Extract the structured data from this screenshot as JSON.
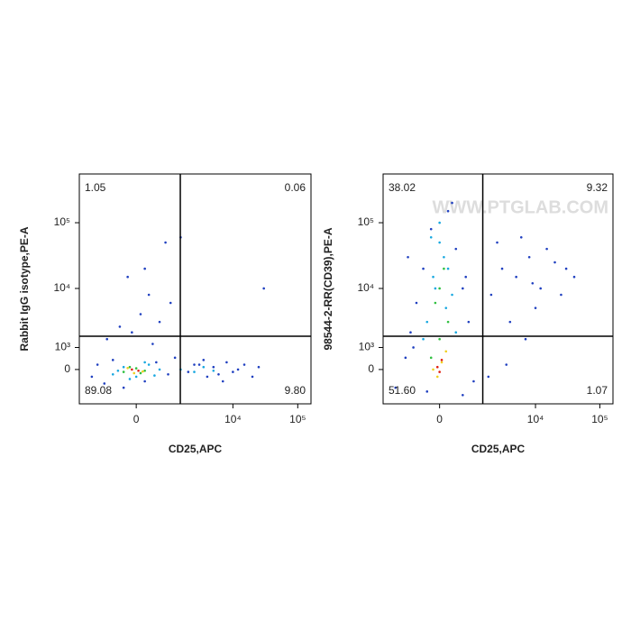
{
  "chart_data": [
    {
      "type": "scatter",
      "x_label": "CD25,APC",
      "y_label": "Rabbit IgG isotype,PE-A",
      "xlim": [
        -2400,
        160000
      ],
      "ylim": [
        -1780,
        550000
      ],
      "xticks": [
        0,
        {
          "value": 10000,
          "label": "10⁴"
        },
        {
          "value": 100000,
          "label": "10⁵"
        }
      ],
      "yticks": [
        0,
        {
          "value": 1000,
          "label": "10³"
        },
        {
          "value": 10000,
          "label": "10⁴"
        },
        {
          "value": 100000,
          "label": "10⁵"
        }
      ],
      "quadrant_x": 1480,
      "quadrant_y": 1700,
      "quadrant_values": [
        1.05,
        0.06,
        89.08,
        9.8
      ],
      "value_labels": [
        "1.05",
        "0.06",
        "89.08",
        "9.80"
      ],
      "series": [
        {
          "color": "#2040c0",
          "x": [
            -1500,
            -1200,
            -900,
            -600,
            -300,
            200,
            500,
            900,
            1200,
            2000,
            3000,
            4000,
            5000,
            6000,
            8000,
            10000,
            12000,
            15000,
            20000,
            25000,
            -400,
            100,
            300,
            -200,
            600,
            -800,
            1000,
            2500,
            7000,
            3500,
            400,
            -100,
            200,
            800,
            30000,
            1500
          ],
          "y": [
            -300,
            200,
            -600,
            400,
            -800,
            -500,
            300,
            -200,
            500,
            -100,
            200,
            -300,
            100,
            -200,
            300,
            -100,
            0,
            200,
            -300,
            100,
            2500,
            4000,
            8000,
            15000,
            3000,
            1500,
            6000,
            200,
            -500,
            400,
            1200,
            2000,
            20000,
            50000,
            10000,
            60000
          ]
        },
        {
          "color": "#18a8e0",
          "x": [
            -600,
            -300,
            0,
            300,
            600,
            -450,
            450,
            1500,
            2500,
            3500,
            5000,
            200,
            -150
          ],
          "y": [
            -200,
            100,
            -300,
            200,
            0,
            -50,
            -250,
            0,
            -100,
            100,
            -50,
            300,
            -400
          ]
        },
        {
          "color": "#30c040",
          "x": [
            -300,
            0,
            200,
            -150,
            100
          ],
          "y": [
            -100,
            50,
            -50,
            100,
            -150
          ]
        },
        {
          "color": "#f0d020",
          "x": [
            -200,
            150,
            -50
          ],
          "y": [
            60,
            -80,
            -150
          ]
        },
        {
          "color": "#e02010",
          "x": [
            -100,
            50
          ],
          "y": [
            0,
            -50
          ]
        }
      ]
    },
    {
      "type": "scatter",
      "x_label": "CD25,APC",
      "y_label": "98544-2-RR(CD39),PE-A",
      "watermark": "WWW.PTGLAB.COM",
      "xlim": [
        -2400,
        160000
      ],
      "ylim": [
        -1780,
        550000
      ],
      "xticks": [
        0,
        {
          "value": 10000,
          "label": "10⁴"
        },
        {
          "value": 100000,
          "label": "10⁵"
        }
      ],
      "yticks": [
        0,
        {
          "value": 1000,
          "label": "10³"
        },
        {
          "value": 10000,
          "label": "10⁴"
        },
        {
          "value": 100000,
          "label": "10⁵"
        }
      ],
      "quadrant_x": 1450,
      "quadrant_y": 1700,
      "quadrant_values": [
        38.02,
        9.32,
        51.6,
        1.07
      ],
      "value_labels": [
        "38.02",
        "9.32",
        "51.60",
        "1.07"
      ],
      "series": [
        {
          "color": "#2040c0",
          "x": [
            -1500,
            -1000,
            -800,
            -600,
            -400,
            -200,
            200,
            400,
            600,
            800,
            1000,
            -700,
            700,
            -300,
            300,
            2000,
            3000,
            5000,
            8000,
            12000,
            20000,
            30000,
            4000,
            6000,
            10000,
            15000,
            25000,
            2500,
            7000,
            9000,
            1800,
            40000,
            3500,
            600,
            -900
          ],
          "y": [
            -800,
            500,
            2000,
            6000,
            20000,
            80000,
            150000,
            40000,
            10000,
            3000,
            -500,
            1000,
            15000,
            -1000,
            200000,
            8000,
            20000,
            15000,
            30000,
            10000,
            25000,
            20000,
            3000,
            60000,
            5000,
            40000,
            8000,
            50000,
            1500,
            12000,
            -300,
            15000,
            200,
            -1200,
            30000
          ]
        },
        {
          "color": "#18a8e0",
          "x": [
            -300,
            -100,
            100,
            300,
            -200,
            200,
            0,
            -400,
            400,
            0,
            150,
            -150
          ],
          "y": [
            3000,
            10000,
            30000,
            8000,
            60000,
            20000,
            100000,
            1500,
            2000,
            50000,
            5000,
            15000
          ]
        },
        {
          "color": "#30c040",
          "x": [
            -200,
            0,
            200,
            -100,
            100,
            0
          ],
          "y": [
            500,
            1500,
            3000,
            6000,
            20000,
            10000
          ]
        },
        {
          "color": "#f0d020",
          "x": [
            -150,
            50,
            150,
            -50
          ],
          "y": [
            0,
            300,
            800,
            -300
          ]
        },
        {
          "color": "#e02010",
          "x": [
            -50,
            50,
            0
          ],
          "y": [
            100,
            400,
            -100
          ]
        }
      ]
    }
  ]
}
